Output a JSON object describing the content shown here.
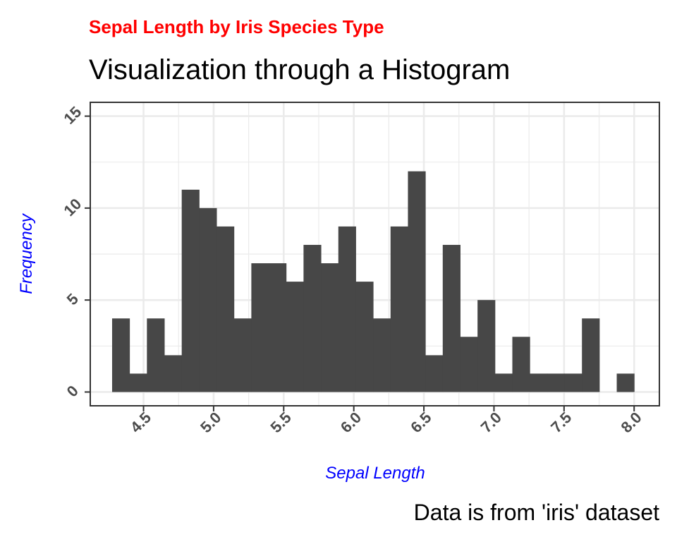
{
  "chart_data": {
    "type": "bar",
    "subtitle": "Sepal Length by Iris Species Type",
    "title": "Visualization through a Histogram",
    "xlabel": "Sepal Length",
    "ylabel": "Frequency",
    "caption": "Data is from 'iris' dataset",
    "bin_width": 0.1241,
    "bin_starts": [
      4.2758,
      4.3999,
      4.5241,
      4.6482,
      4.7724,
      4.8965,
      5.0207,
      5.1448,
      5.269,
      5.3931,
      5.5172,
      5.6414,
      5.7655,
      5.8897,
      6.0138,
      6.1379,
      6.2621,
      6.3862,
      6.5103,
      6.6345,
      6.7586,
      6.8828,
      7.0069,
      7.131,
      7.2552,
      7.3793,
      7.5034,
      7.6276,
      7.7517,
      7.8759
    ],
    "values": [
      4,
      1,
      4,
      2,
      11,
      10,
      9,
      4,
      7,
      7,
      6,
      8,
      7,
      9,
      6,
      4,
      9,
      12,
      2,
      8,
      3,
      5,
      1,
      3,
      1,
      1,
      1,
      4,
      0,
      1
    ],
    "xlim": [
      4.12,
      8.18
    ],
    "ylim": [
      -0.75,
      15.75
    ],
    "x_ticks": [
      "4.5",
      "5.0",
      "5.5",
      "6.0",
      "6.5",
      "7.0",
      "7.5",
      "8.0"
    ],
    "y_ticks": [
      "0",
      "5",
      "10",
      "15"
    ],
    "x_minor_ticks": [
      4.75,
      5.25,
      5.75,
      6.25,
      6.75,
      7.25,
      7.75
    ],
    "y_minor_ticks": [
      2.5,
      7.5,
      12.5
    ],
    "grid": true,
    "colors": {
      "bar": "#474747",
      "subtitle": "#ff0000",
      "axis_title": "#0000ff",
      "grid": "#ebebeb",
      "panel_border": "#333333"
    }
  }
}
